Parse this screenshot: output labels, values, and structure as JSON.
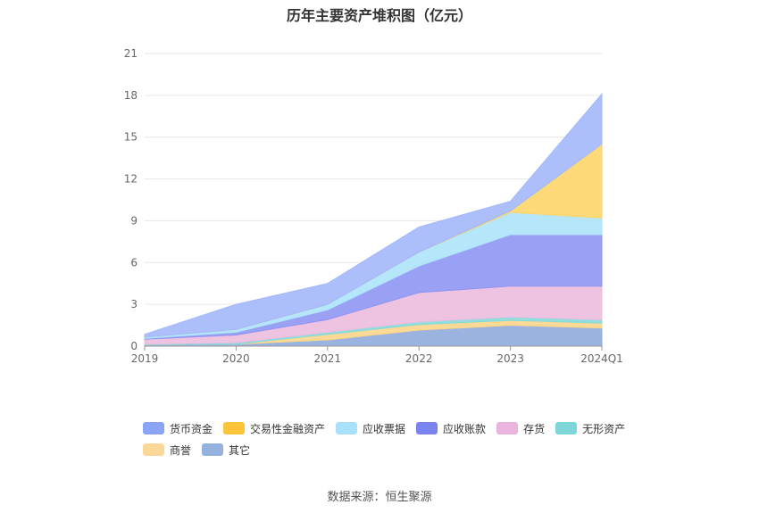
{
  "title": "历年主要资产堆积图（亿元）",
  "source": "数据来源：恒生聚源",
  "chart_data": {
    "type": "area",
    "stacked": true,
    "categories": [
      "2019",
      "2020",
      "2021",
      "2022",
      "2023",
      "2024Q1"
    ],
    "ylim": [
      0,
      21
    ],
    "yticks": [
      0,
      3,
      6,
      9,
      12,
      15,
      18,
      21
    ],
    "grid": true,
    "legend_position": "bottom",
    "series": [
      {
        "name": "其它",
        "color": "#8fabdb",
        "values": [
          0.1,
          0.15,
          0.45,
          1.15,
          1.5,
          1.3
        ]
      },
      {
        "name": "商誉",
        "color": "#fcd68a",
        "values": [
          0.0,
          0.0,
          0.4,
          0.4,
          0.35,
          0.35
        ]
      },
      {
        "name": "无形资产",
        "color": "#86d9d9",
        "values": [
          0.05,
          0.1,
          0.15,
          0.2,
          0.25,
          0.25
        ]
      },
      {
        "name": "存货",
        "color": "#ecbcdf",
        "values": [
          0.35,
          0.55,
          0.9,
          2.1,
          2.2,
          2.4
        ]
      },
      {
        "name": "应收账款",
        "color": "#8f96f2",
        "values": [
          0.05,
          0.2,
          0.7,
          1.9,
          3.7,
          3.7
        ]
      },
      {
        "name": "应收票据",
        "color": "#ade3f9",
        "values": [
          0.1,
          0.2,
          0.4,
          1.0,
          1.6,
          1.2
        ]
      },
      {
        "name": "交易性金融资产",
        "color": "#fdd668",
        "values": [
          0.0,
          0.0,
          0.0,
          0.0,
          0.1,
          5.3
        ]
      },
      {
        "name": "货币资金",
        "color": "#a3b8fb",
        "values": [
          0.2,
          1.8,
          1.5,
          1.8,
          0.7,
          3.6
        ]
      }
    ],
    "legend_order": [
      "货币资金",
      "交易性金融资产",
      "应收票据",
      "应收账款",
      "存货",
      "无形资产",
      "商誉",
      "其它"
    ],
    "legend_colors": {
      "货币资金": "#8aa5f8",
      "交易性金融资产": "#fcc43a",
      "应收票据": "#a9e1fb",
      "应收账款": "#7b83ee",
      "存货": "#e9b4de",
      "无形资产": "#7fd6d6",
      "商誉": "#fcd898",
      "其它": "#93b2df"
    }
  }
}
